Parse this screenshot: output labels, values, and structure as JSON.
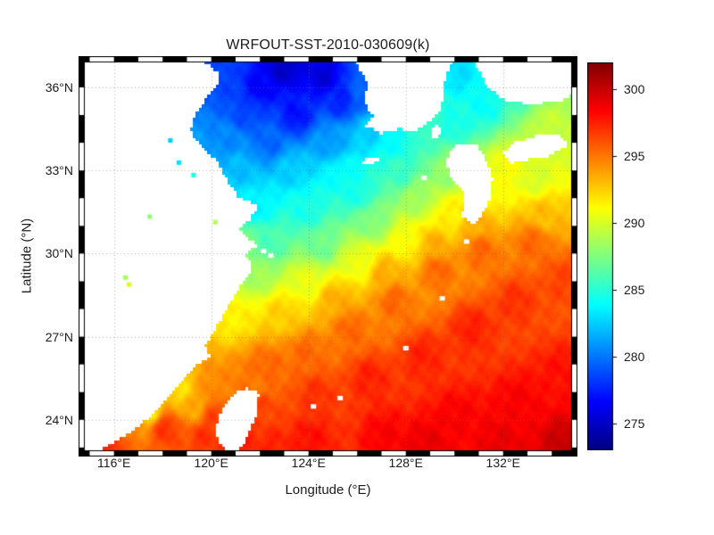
{
  "title": "WRFOUT-SST-2010-030609(k)",
  "axes": {
    "xlabel": "Longitude (°E)",
    "ylabel": "Latitude (°N)",
    "x_ticks": [
      {
        "value": 116,
        "label": "116°E"
      },
      {
        "value": 120,
        "label": "120°E"
      },
      {
        "value": 124,
        "label": "124°E"
      },
      {
        "value": 128,
        "label": "128°E"
      },
      {
        "value": 132,
        "label": "132°E"
      }
    ],
    "y_ticks": [
      {
        "value": 24,
        "label": "24°N"
      },
      {
        "value": 27,
        "label": "27°N"
      },
      {
        "value": 30,
        "label": "30°N"
      },
      {
        "value": 33,
        "label": "33°N"
      },
      {
        "value": 36,
        "label": "36°N"
      }
    ]
  },
  "colorbar": {
    "min": 273,
    "max": 302,
    "tick_values": [
      275,
      280,
      285,
      290,
      295,
      300
    ],
    "colormap": "jet"
  },
  "chart_data": {
    "type": "heatmap",
    "title": "WRFOUT-SST-2010-030609(k)",
    "xlabel": "Longitude (°E)",
    "ylabel": "Latitude (°N)",
    "units": "K",
    "colormap": "jet",
    "lon_range": [
      114.8,
      134.8
    ],
    "lat_range": [
      22.9,
      36.9
    ],
    "value_range": [
      273,
      302
    ],
    "grid_lons": [
      116,
      120,
      124,
      128,
      132
    ],
    "grid_lats": [
      24,
      27,
      30,
      33,
      36
    ],
    "sst_samples": [
      [
        123.0,
        36.7,
        275
      ],
      [
        124.6,
        36.4,
        275.5
      ],
      [
        122.0,
        36.0,
        276.5
      ],
      [
        120.5,
        36.3,
        278.5
      ],
      [
        125.4,
        35.5,
        277.5
      ],
      [
        121.4,
        35.1,
        278.5
      ],
      [
        123.5,
        35.0,
        277
      ],
      [
        126.2,
        35.6,
        279.5
      ],
      [
        120.7,
        34.1,
        280.5
      ],
      [
        122.4,
        34.0,
        279.5
      ],
      [
        124.9,
        34.0,
        281
      ],
      [
        126.4,
        34.4,
        282.5
      ],
      [
        121.1,
        33.1,
        282
      ],
      [
        123.3,
        33.0,
        282.5
      ],
      [
        125.4,
        32.9,
        284
      ],
      [
        127.6,
        34.0,
        284
      ],
      [
        128.7,
        34.2,
        285.5
      ],
      [
        130.0,
        34.7,
        284.5
      ],
      [
        131.2,
        35.4,
        284
      ],
      [
        132.7,
        36.0,
        285.5
      ],
      [
        134.3,
        36.5,
        288
      ],
      [
        130.2,
        36.5,
        283
      ],
      [
        121.9,
        31.7,
        283.5
      ],
      [
        123.9,
        31.6,
        284.5
      ],
      [
        126.0,
        32.2,
        284.5
      ],
      [
        127.8,
        33.0,
        285.5
      ],
      [
        122.4,
        30.4,
        286
      ],
      [
        121.3,
        30.4,
        287.5
      ],
      [
        124.5,
        30.3,
        287
      ],
      [
        126.6,
        31.2,
        287.5
      ],
      [
        128.5,
        32.0,
        288.5
      ],
      [
        129.7,
        33.0,
        288
      ],
      [
        132.2,
        33.0,
        291
      ],
      [
        133.9,
        34.6,
        289.5
      ],
      [
        121.9,
        29.3,
        288.5
      ],
      [
        123.9,
        29.0,
        290.5
      ],
      [
        126.1,
        29.7,
        290.5
      ],
      [
        128.1,
        30.5,
        291
      ],
      [
        129.8,
        31.4,
        291.5
      ],
      [
        131.4,
        32.2,
        291
      ],
      [
        133.3,
        32.7,
        290
      ],
      [
        120.9,
        27.7,
        291.5
      ],
      [
        122.9,
        27.8,
        292.5
      ],
      [
        125.1,
        28.3,
        293.5
      ],
      [
        127.1,
        29.3,
        293.5
      ],
      [
        129.1,
        30.3,
        293.5
      ],
      [
        130.9,
        31.2,
        293.5
      ],
      [
        133.6,
        31.4,
        293
      ],
      [
        122.3,
        25.9,
        295.5
      ],
      [
        123.9,
        26.4,
        295.5
      ],
      [
        125.7,
        27.3,
        295.5
      ],
      [
        127.5,
        28.3,
        295.5
      ],
      [
        129.3,
        29.4,
        295.5
      ],
      [
        131.1,
        30.1,
        295.5
      ],
      [
        133.2,
        30.4,
        295.5
      ],
      [
        118.1,
        23.7,
        297
      ],
      [
        120.1,
        24.1,
        296.5
      ],
      [
        122.1,
        24.4,
        296.5
      ],
      [
        124.3,
        24.9,
        297
      ],
      [
        126.5,
        25.5,
        297.5
      ],
      [
        128.7,
        26.3,
        297.5
      ],
      [
        130.7,
        27.3,
        297.5
      ],
      [
        132.5,
        28.3,
        297
      ],
      [
        134.4,
        29.0,
        296.5
      ],
      [
        121.2,
        23.2,
        297.5
      ],
      [
        124.1,
        23.3,
        298
      ],
      [
        127.1,
        23.4,
        298.5
      ],
      [
        130.1,
        24.1,
        298.5
      ],
      [
        132.6,
        24.6,
        298.5
      ],
      [
        134.4,
        25.6,
        298
      ],
      [
        134.5,
        23.1,
        300
      ],
      [
        131.9,
        23.1,
        299
      ],
      [
        128.9,
        23.1,
        299
      ],
      [
        121.9,
        25.3,
        295
      ],
      [
        120.2,
        25.1,
        294.5
      ],
      [
        119.3,
        24.4,
        293.5
      ],
      [
        117.5,
        24.3,
        292
      ],
      [
        118.7,
        25.1,
        292
      ],
      [
        116.6,
        23.8,
        294.5
      ],
      [
        115.9,
        23.1,
        297
      ],
      [
        119.7,
        23.4,
        297
      ],
      [
        122.6,
        23.0,
        297.5
      ]
    ],
    "land_polygons": {
      "china": [
        [
          114.8,
          36.9
        ],
        [
          119.7,
          36.9
        ],
        [
          120.35,
          36.5
        ],
        [
          120.3,
          36.1
        ],
        [
          119.8,
          35.6
        ],
        [
          119.35,
          35.0
        ],
        [
          119.15,
          34.4
        ],
        [
          119.6,
          33.9
        ],
        [
          120.25,
          33.3
        ],
        [
          120.7,
          32.6
        ],
        [
          121.15,
          32.0
        ],
        [
          121.95,
          31.75
        ],
        [
          121.6,
          31.25
        ],
        [
          121.1,
          30.85
        ],
        [
          121.9,
          30.3
        ],
        [
          121.35,
          29.95
        ],
        [
          121.75,
          29.5
        ],
        [
          121.15,
          28.8
        ],
        [
          120.65,
          28.0
        ],
        [
          120.1,
          27.2
        ],
        [
          119.75,
          26.7
        ],
        [
          119.95,
          26.3
        ],
        [
          119.3,
          25.9
        ],
        [
          118.9,
          25.45
        ],
        [
          118.15,
          24.7
        ],
        [
          117.4,
          24.05
        ],
        [
          116.7,
          23.55
        ],
        [
          116.1,
          23.25
        ],
        [
          115.4,
          22.9
        ],
        [
          114.8,
          22.9
        ]
      ],
      "korea": [
        [
          125.95,
          36.9
        ],
        [
          126.45,
          36.1
        ],
        [
          126.25,
          35.5
        ],
        [
          126.65,
          34.95
        ],
        [
          126.35,
          34.6
        ],
        [
          127.0,
          34.35
        ],
        [
          127.7,
          34.5
        ],
        [
          128.35,
          34.4
        ],
        [
          128.95,
          34.75
        ],
        [
          129.35,
          35.1
        ],
        [
          129.55,
          35.7
        ],
        [
          129.65,
          36.4
        ],
        [
          129.9,
          36.9
        ]
      ],
      "kyushu": [
        [
          129.65,
          33.4
        ],
        [
          130.1,
          33.95
        ],
        [
          130.85,
          34.0
        ],
        [
          131.25,
          33.5
        ],
        [
          131.55,
          32.7
        ],
        [
          131.4,
          31.8
        ],
        [
          130.85,
          31.0
        ],
        [
          130.3,
          31.35
        ],
        [
          130.45,
          32.2
        ],
        [
          129.85,
          32.7
        ]
      ],
      "honshu": [
        [
          130.85,
          36.9
        ],
        [
          131.35,
          36.0
        ],
        [
          132.15,
          35.5
        ],
        [
          133.15,
          35.4
        ],
        [
          134.3,
          35.5
        ],
        [
          134.8,
          35.7
        ],
        [
          134.8,
          36.9
        ]
      ],
      "shikoku": [
        [
          131.95,
          33.6
        ],
        [
          132.5,
          34.0
        ],
        [
          133.3,
          34.25
        ],
        [
          134.3,
          34.3
        ],
        [
          134.65,
          33.9
        ],
        [
          133.9,
          33.5
        ],
        [
          133.0,
          33.4
        ],
        [
          132.3,
          33.25
        ]
      ],
      "tsushima": [
        [
          129.15,
          34.1
        ],
        [
          129.45,
          34.35
        ],
        [
          129.35,
          34.7
        ],
        [
          129.05,
          34.45
        ]
      ],
      "jeju": [
        [
          126.15,
          33.3
        ],
        [
          126.55,
          33.5
        ],
        [
          126.95,
          33.45
        ],
        [
          126.6,
          33.2
        ]
      ],
      "taiwan": [
        [
          121.45,
          25.15
        ],
        [
          121.95,
          24.95
        ],
        [
          121.85,
          24.2
        ],
        [
          121.5,
          23.4
        ],
        [
          121.15,
          22.9
        ],
        [
          120.55,
          22.9
        ],
        [
          120.15,
          23.6
        ],
        [
          120.45,
          24.4
        ],
        [
          120.95,
          24.95
        ]
      ]
    },
    "islands": [
      [
        122.15,
        30.1
      ],
      [
        122.45,
        29.95
      ],
      [
        130.5,
        30.45
      ],
      [
        129.5,
        28.4
      ],
      [
        128.0,
        26.6
      ],
      [
        125.3,
        24.8
      ],
      [
        124.2,
        24.5
      ],
      [
        128.75,
        32.75
      ]
    ],
    "lakes": [
      [
        118.65,
        33.3,
        283
      ],
      [
        119.25,
        32.85,
        284.5
      ],
      [
        120.15,
        31.15,
        289
      ],
      [
        118.3,
        34.1,
        282.5
      ],
      [
        117.45,
        31.35,
        288
      ],
      [
        116.6,
        28.9,
        290
      ],
      [
        116.45,
        29.15,
        288.5
      ]
    ]
  }
}
